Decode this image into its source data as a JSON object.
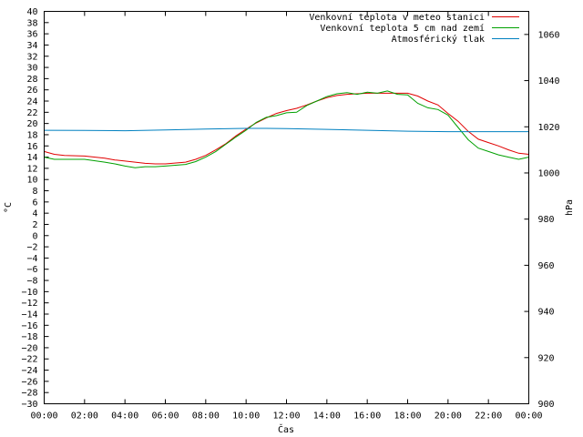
{
  "chart_data": {
    "type": "line",
    "title": "",
    "xlabel": "Čas",
    "ylabel_left": "°C",
    "ylabel_right": "hPa",
    "xlim": [
      0,
      24
    ],
    "ylim_left": [
      -30,
      40
    ],
    "ylim_right": [
      900,
      1070
    ],
    "grid": false,
    "legend_position": "top-right",
    "x_tick_labels": [
      "00:00",
      "02:00",
      "04:00",
      "06:00",
      "08:00",
      "10:00",
      "12:00",
      "14:00",
      "16:00",
      "18:00",
      "20:00",
      "22:00",
      "00:00"
    ],
    "y_left_ticks": [
      40,
      38,
      36,
      34,
      32,
      30,
      28,
      26,
      24,
      22,
      20,
      18,
      16,
      14,
      12,
      10,
      8,
      6,
      4,
      2,
      0,
      -2,
      -4,
      -6,
      -8,
      -10,
      -12,
      -14,
      -16,
      -18,
      -20,
      -22,
      -24,
      -26,
      -28,
      -30
    ],
    "y_right_ticks": [
      1060,
      1040,
      1020,
      1000,
      980,
      960,
      940,
      920,
      900
    ],
    "series": [
      {
        "name": "Venkovní teplota v meteo stanici",
        "axis": "left",
        "color": "#e00000",
        "x": [
          0,
          0.5,
          1,
          2,
          3,
          3.5,
          4,
          4.5,
          5,
          5.5,
          6,
          7,
          7.5,
          8,
          8.5,
          9,
          9.5,
          10,
          10.5,
          11,
          11.5,
          12,
          12.5,
          13,
          13.5,
          14,
          14.5,
          15,
          15.5,
          16,
          16.5,
          17,
          17.5,
          18,
          18.5,
          19,
          19.5,
          20,
          20.5,
          21,
          21.5,
          22,
          22.5,
          23,
          23.5,
          24
        ],
        "values": [
          15.0,
          14.5,
          14.3,
          14.2,
          13.8,
          13.5,
          13.3,
          13.1,
          12.9,
          12.8,
          12.8,
          13.1,
          13.6,
          14.3,
          15.3,
          16.4,
          17.8,
          19.0,
          20.1,
          21.0,
          21.8,
          22.3,
          22.7,
          23.3,
          24.0,
          24.6,
          25.0,
          25.2,
          25.3,
          25.4,
          25.4,
          25.4,
          25.4,
          25.4,
          24.9,
          24.0,
          23.3,
          21.8,
          20.4,
          18.6,
          17.2,
          16.6,
          16.0,
          15.3,
          14.7,
          14.5
        ]
      },
      {
        "name": "Venkovní teplota 5 cm nad zemí",
        "axis": "left",
        "color": "#00a000",
        "x": [
          0,
          0.5,
          1,
          2,
          3,
          3.5,
          4,
          4.5,
          5,
          5.5,
          6,
          7,
          7.5,
          8,
          8.5,
          9,
          9.5,
          10,
          10.5,
          11,
          11.5,
          12,
          12.5,
          13,
          13.5,
          14,
          14.5,
          15,
          15.5,
          16,
          16.5,
          17,
          17.5,
          18,
          18.5,
          19,
          19.5,
          20,
          20.5,
          21,
          21.5,
          22,
          22.5,
          23,
          23.5,
          24
        ],
        "values": [
          14.0,
          13.6,
          13.6,
          13.6,
          13.1,
          12.8,
          12.4,
          12.1,
          12.3,
          12.3,
          12.4,
          12.7,
          13.2,
          14.0,
          15.0,
          16.3,
          17.6,
          18.8,
          20.2,
          21.1,
          21.4,
          21.9,
          22.0,
          23.2,
          24.0,
          24.8,
          25.3,
          25.5,
          25.2,
          25.6,
          25.4,
          25.8,
          25.2,
          25.1,
          23.6,
          22.8,
          22.5,
          21.5,
          19.3,
          17.1,
          15.6,
          15.0,
          14.4,
          14.0,
          13.6,
          14.0
        ]
      },
      {
        "name": "Atmosférický tlak",
        "axis": "right",
        "color": "#0080c0",
        "x": [
          0,
          2,
          4,
          6,
          8,
          10,
          11,
          12,
          14,
          16,
          18,
          20,
          22,
          24
        ],
        "values": [
          1018.5,
          1018.4,
          1018.3,
          1018.6,
          1019.0,
          1019.3,
          1019.3,
          1019.2,
          1018.9,
          1018.5,
          1018.1,
          1017.9,
          1017.9,
          1017.9
        ]
      }
    ]
  }
}
